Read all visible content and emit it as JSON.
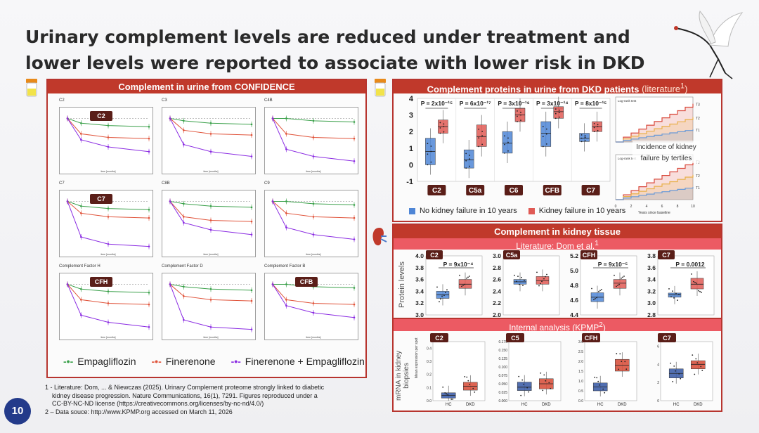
{
  "slide": {
    "title_line1": "Urinary complement levels are reduced under treatment and",
    "title_line2": "lower levels were reported to associate with lower risk in DKD",
    "page_number": "10"
  },
  "left_panel": {
    "header": "Complement in urine from CONFIDENCE",
    "legend": [
      "Empagliflozin",
      "Finerenone",
      "Finerenone + Empagliflozin"
    ],
    "colors": {
      "empagliflozin": "#3aa04a",
      "finerenone": "#e0533a",
      "combo": "#8a2be2"
    }
  },
  "right_top": {
    "header": "Complement proteins in urine from DKD patients",
    "header_note": "(literature",
    "legend": [
      "No kidney failure in 10 years",
      "Kidney failure in 10 years"
    ],
    "colors": {
      "no_failure": "#4f86d6",
      "failure": "#e05a55"
    },
    "incidence_label_1": "Incidence of kidney",
    "incidence_label_2": "failure by tertiles",
    "km_xlabel": "Years since baseline",
    "km_tertiles": [
      "T3",
      "T2",
      "T1"
    ]
  },
  "right_mid": {
    "header": "Complement in kidney tissue",
    "subheader": "Literature: Dom et al.",
    "ylabel": "Protein levels"
  },
  "right_bottom": {
    "subheader": "Internal analysis (KPMP",
    "ylabel_1": "mRNA in kidney",
    "ylabel_2": "biopsies",
    "inner_ylabel": "Mean expression per spot",
    "groups": [
      "HC",
      "DKD"
    ]
  },
  "footnotes": {
    "line1": "1 - Literature: Dom, ... & Niewczas (2025). Urinary Complement proteome strongly linked to diabetic",
    "line2": "kidney disease progression. Nature Communications, 16(1), 7291. Figures reproduced under a",
    "line3": "CC-BY-NC-ND license (https://creativecommons.org/licenses/by-nc-nd/4.0/)",
    "line4": "2 – Data souce: http://www.KPMP.org accessed on March 11, 2026"
  },
  "chart_data": [
    {
      "type": "line",
      "id": "urine-confidence",
      "panels": [
        {
          "label": "C2",
          "badge": "C2"
        },
        {
          "label": "C3",
          "badge": ""
        },
        {
          "label": "C4B",
          "badge": ""
        },
        {
          "label": "C7",
          "badge": "C7"
        },
        {
          "label": "C8B",
          "badge": ""
        },
        {
          "label": "C9",
          "badge": ""
        },
        {
          "label": "Complement Factor H",
          "badge": "CFH"
        },
        {
          "label": "Complement Factor D",
          "badge": ""
        },
        {
          "label": "Complement Factor B",
          "badge": "CFB"
        }
      ],
      "xlabel": "time [months]",
      "series": [
        {
          "name": "Empagliflozin",
          "values": [
            1.0,
            0.96,
            0.94,
            0.93
          ]
        },
        {
          "name": "Finerenone",
          "values": [
            1.0,
            0.9,
            0.87,
            0.86
          ]
        },
        {
          "name": "Finerenone + Empagliflozin",
          "values": [
            1.0,
            0.82,
            0.76,
            0.72
          ]
        }
      ]
    },
    {
      "type": "box",
      "id": "urine-dkd-literature",
      "categories": [
        "C2",
        "C5a",
        "C6",
        "CFB",
        "C7"
      ],
      "p_values": [
        "P = 2x10⁻¹⁵",
        "P = 6x10⁻¹⁷",
        "P = 3x10⁻¹⁶",
        "P = 3x10⁻¹⁴",
        "P = 8x10⁻¹⁵"
      ],
      "ylim": [
        -1,
        4
      ],
      "yticks": [
        "4",
        "3",
        "2",
        "1",
        "0",
        "-1"
      ],
      "series": [
        {
          "name": "No kidney failure in 10 years",
          "median": [
            0.8,
            0.3,
            1.3,
            1.9,
            1.6
          ],
          "q1": [
            0.0,
            -0.2,
            0.7,
            1.1,
            1.4
          ],
          "q3": [
            1.6,
            0.9,
            2.0,
            2.6,
            1.9
          ]
        },
        {
          "name": "Kidney failure in 10 years",
          "median": [
            2.3,
            1.7,
            3.0,
            3.2,
            2.3
          ],
          "q1": [
            1.9,
            1.1,
            2.6,
            2.8,
            2.0
          ],
          "q3": [
            2.7,
            2.4,
            3.4,
            3.5,
            2.6
          ]
        }
      ]
    },
    {
      "type": "box",
      "id": "tissue-dom",
      "panels": [
        {
          "label": "C2",
          "p": "P = 9x10⁻⁴",
          "yticks": [
            "4.0",
            "3.8",
            "3.6",
            "3.4",
            "3.2",
            "3.0"
          ],
          "ylim": [
            3.0,
            4.0
          ],
          "no_failure": [
            3.28,
            3.34,
            3.4
          ],
          "failure": [
            3.45,
            3.52,
            3.6
          ]
        },
        {
          "label": "C5a",
          "p": "",
          "yticks": [
            "3.0",
            "2.8",
            "2.6",
            "2.4",
            "2.2",
            "2.0"
          ],
          "ylim": [
            2.0,
            3.0
          ],
          "no_failure": [
            2.52,
            2.56,
            2.6
          ],
          "failure": [
            2.52,
            2.58,
            2.65
          ]
        },
        {
          "label": "CFH",
          "p": "P = 9x10⁻⁵",
          "yticks": [
            "5.2",
            "5.0",
            "4.8",
            "4.6",
            "4.4"
          ],
          "ylim": [
            4.4,
            5.2
          ],
          "no_failure": [
            4.58,
            4.64,
            4.7
          ],
          "failure": [
            4.76,
            4.83,
            4.88
          ]
        },
        {
          "label": "C7",
          "p": "P = 0.0012",
          "yticks": [
            "3.8",
            "3.6",
            "3.4",
            "3.2",
            "3.0",
            "2.8"
          ],
          "ylim": [
            2.8,
            3.8
          ],
          "no_failure": [
            3.1,
            3.14,
            3.17
          ],
          "failure": [
            3.24,
            3.32,
            3.42
          ]
        }
      ]
    },
    {
      "type": "box",
      "id": "kpmp-mrna",
      "panels": [
        {
          "label": "C2",
          "yticks": [
            "0.4",
            "0.3",
            "0.2",
            "0.1",
            "0.0"
          ],
          "ylim": [
            0,
            0.45
          ],
          "HC": [
            0.02,
            0.04,
            0.06
          ],
          "DKD": [
            0.08,
            0.11,
            0.14
          ]
        },
        {
          "label": "C5",
          "yticks": [
            "0.175",
            "0.150",
            "0.125",
            "0.100",
            "0.075",
            "0.050",
            "0.025",
            "0.000"
          ],
          "ylim": [
            0,
            0.175
          ],
          "HC": [
            0.03,
            0.04,
            0.055
          ],
          "DKD": [
            0.035,
            0.05,
            0.065
          ]
        },
        {
          "label": "CFH",
          "yticks": [
            "3.0",
            "2.5",
            "2.0",
            "1.5",
            "1.0",
            "0.5",
            "0.0"
          ],
          "ylim": [
            0,
            3.0
          ],
          "HC": [
            0.5,
            0.7,
            0.9
          ],
          "DKD": [
            1.5,
            1.8,
            2.1
          ]
        },
        {
          "label": "C7",
          "yticks": [
            "6",
            "4",
            "2",
            "0"
          ],
          "ylim": [
            0,
            6.5
          ],
          "HC": [
            2.5,
            3.0,
            3.5
          ],
          "DKD": [
            3.5,
            4.0,
            4.4
          ]
        }
      ]
    }
  ]
}
